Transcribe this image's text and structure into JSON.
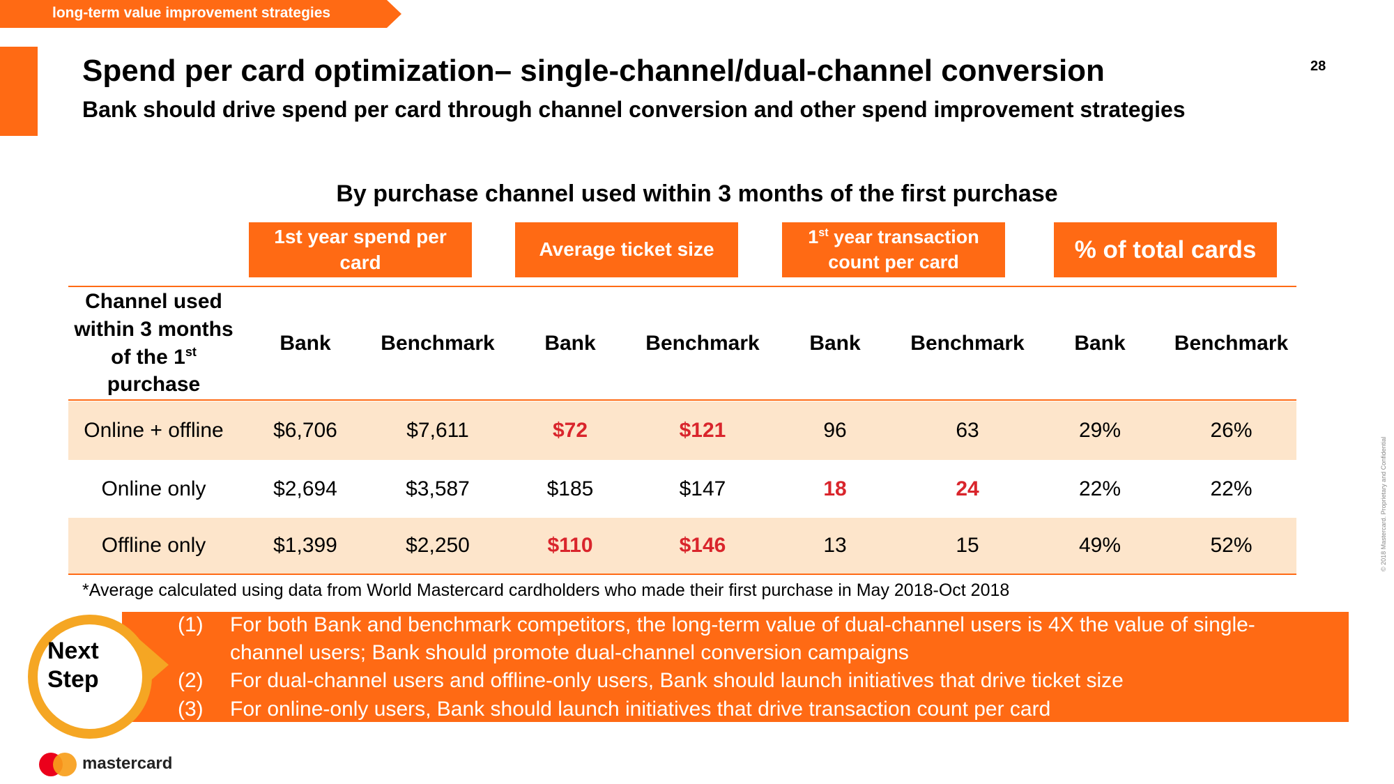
{
  "header": {
    "banner": "long-term value improvement strategies",
    "title": "Spend per card optimization– single-channel/dual-channel conversion",
    "subtitle": "Bank should drive spend per card through channel conversion and other spend improvement strategies",
    "page_number": "28"
  },
  "table": {
    "title": "By purchase channel used within 3 months of the first purchase",
    "groups": {
      "spend": "1st year spend per card",
      "ticket": "Average ticket size",
      "count_pre": "1",
      "count_sup": "st",
      "count_post": " year transaction count per card",
      "share": "% of total cards"
    },
    "channel_header": {
      "line1": "Channel used within 3 months of the 1",
      "sup": "st",
      "line2": " purchase"
    },
    "col_bank": "Bank",
    "col_benchmark": "Benchmark",
    "rows": [
      {
        "channel": "Online + offline",
        "spend_bank": "$6,706",
        "spend_bench": "$7,611",
        "ticket_bank": "$72",
        "ticket_bench": "$121",
        "count_bank": "96",
        "count_bench": "63",
        "share_bank": "29%",
        "share_bench": "26%"
      },
      {
        "channel": "Online only",
        "spend_bank": "$2,694",
        "spend_bench": "$3,587",
        "ticket_bank": "$185",
        "ticket_bench": "$147",
        "count_bank": "18",
        "count_bench": "24",
        "share_bank": "22%",
        "share_bench": "22%"
      },
      {
        "channel": "Offline only",
        "spend_bank": "$1,399",
        "spend_bench": "$2,250",
        "ticket_bank": "$110",
        "ticket_bench": "$146",
        "count_bank": "13",
        "count_bench": "15",
        "share_bank": "49%",
        "share_bench": "52%"
      }
    ],
    "highlight_color": "#d9252c"
  },
  "footnote": "*Average calculated using data from World Mastercard cardholders who made their first purchase in May 2018-Oct 2018",
  "next_step": {
    "label_line1": "Next",
    "label_line2": "Step",
    "items": [
      {
        "num": "(1)",
        "line1": "For both Bank and benchmark competitors, the long-term value of dual-channel users is 4X the value of single-",
        "line2": "channel users; Bank should promote dual-channel conversion campaigns"
      },
      {
        "num": "(2)",
        "line1": "For dual-channel users and offline-only users, Bank should launch initiatives that drive ticket size"
      },
      {
        "num": "(3)",
        "line1": "For online-only users, Bank should launch initiatives that drive transaction count per card"
      }
    ]
  },
  "footer": {
    "brand": "mastercard",
    "vertical_note": "© 2018 Mastercard. Proprietary and Confidential"
  },
  "colors": {
    "accent": "#ff6a14",
    "row_shade": "#fde5cb",
    "next_ring": "#f5a623",
    "mc_red": "#eb001b",
    "mc_yellow": "#f79e1b"
  }
}
